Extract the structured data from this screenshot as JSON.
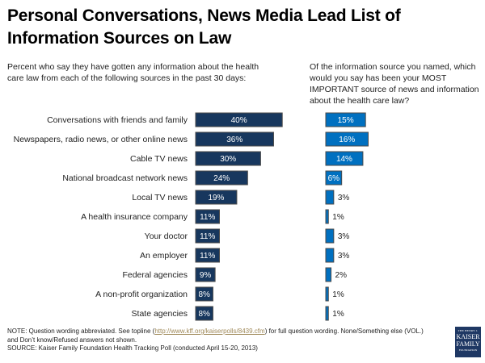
{
  "title": "Personal Conversations, News Media Lead List of Information Sources on Law",
  "subtitle_left": "Percent who say they have gotten any information about the health care law from each of the following sources in the past 30 days:",
  "subtitle_right": "Of the information source you named, which would you say has been your MOST IMPORTANT source of news and information about the health care law?",
  "note": {
    "prefix": "NOTE: Question wording abbreviated. See topline (",
    "link": "http://www.kff.org/kaiserpolls/8439.cfm",
    "suffix": ") for full question wording. None/Something else (VOL.) and Don’t know/Refused answers not shown.",
    "source": "SOURCE: Kaiser Family Foundation Health Tracking Poll (conducted April 15-20, 2013)"
  },
  "logo": {
    "line1": "THE HENRY J.",
    "line2": "KAISER",
    "line3": "FAMILY",
    "line4": "FOUNDATION"
  },
  "colors": {
    "left_bar": "#17375e",
    "right_bar": "#0070c0",
    "bar_border": "#4a4a4a"
  },
  "chart_data": [
    {
      "type": "bar",
      "orientation": "horizontal",
      "title": "Percent who say they have gotten any information about the health care law from each of the following sources in the past 30 days",
      "categories": [
        "Conversations with friends and family",
        "Newspapers, radio news, or other online news",
        "Cable TV news",
        "National broadcast network news",
        "Local TV news",
        "A health insurance company",
        "Your doctor",
        "An employer",
        "Federal agencies",
        "A non-profit organization",
        "State agencies"
      ],
      "values": [
        40,
        36,
        30,
        24,
        19,
        11,
        11,
        11,
        9,
        8,
        8
      ],
      "labels": [
        "40%",
        "36%",
        "30%",
        "24%",
        "19%",
        "11%",
        "11%",
        "11%",
        "9%",
        "8%",
        "8%"
      ],
      "unit": "%",
      "xlabel": "",
      "ylabel": "",
      "grid": false
    },
    {
      "type": "bar",
      "orientation": "horizontal",
      "title": "Most important source of news and information about the health care law",
      "categories": [
        "Conversations with friends and family",
        "Newspapers, radio news, or other online news",
        "Cable TV news",
        "National broadcast network news",
        "Local TV news",
        "A health insurance company",
        "Your doctor",
        "An employer",
        "Federal agencies",
        "A non-profit organization",
        "State agencies"
      ],
      "values": [
        15,
        16,
        14,
        6,
        3,
        1,
        3,
        3,
        2,
        1,
        1
      ],
      "labels": [
        "15%",
        "16%",
        "14%",
        "6%",
        "3%",
        "1%",
        "3%",
        "3%",
        "2%",
        "1%",
        "1%"
      ],
      "unit": "%",
      "xlabel": "",
      "ylabel": "",
      "grid": false
    }
  ]
}
